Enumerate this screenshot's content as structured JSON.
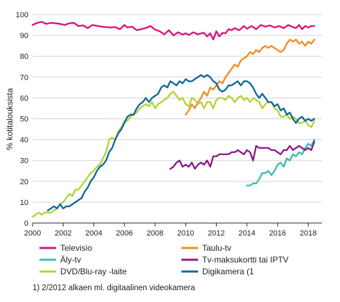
{
  "chart_data": {
    "type": "line",
    "title": "",
    "xlabel": "",
    "ylabel": "% kotitalouksista",
    "xlim": [
      2000,
      2018.9
    ],
    "ylim": [
      0,
      100
    ],
    "xticks": [
      "2000",
      "2002",
      "2004",
      "2006",
      "2008",
      "2010",
      "2012",
      "2014",
      "2016",
      "2018"
    ],
    "yticks": [
      "0",
      "10",
      "20",
      "30",
      "40",
      "50",
      "60",
      "70",
      "80",
      "90",
      "100"
    ],
    "grid": "horizontal",
    "legend_position": "bottom",
    "footnote": "1) 2/2012 alkaen ml. digitaalinen videokamera",
    "series": [
      {
        "name": "Televisio",
        "color": "#d9147a",
        "x": [
          2000,
          2000.3,
          2000.6,
          2000.9,
          2001.2,
          2001.5,
          2001.8,
          2002.1,
          2002.4,
          2002.7,
          2003.0,
          2003.3,
          2003.6,
          2003.9,
          2004.2,
          2004.5,
          2004.8,
          2005.1,
          2005.4,
          2005.7,
          2006.0,
          2006.2,
          2006.5,
          2006.8,
          2007.1,
          2007.4,
          2007.7,
          2008.0,
          2008.3,
          2008.6,
          2008.9,
          2009.2,
          2009.5,
          2009.8,
          2010.0,
          2010.2,
          2010.5,
          2010.8,
          2011.0,
          2011.2,
          2011.4,
          2011.6,
          2011.8,
          2012.0,
          2012.2,
          2012.4,
          2012.6,
          2012.8,
          2013.0,
          2013.2,
          2013.5,
          2013.8,
          2014.0,
          2014.3,
          2014.6,
          2014.9,
          2015.2,
          2015.5,
          2015.8,
          2016.1,
          2016.4,
          2016.7,
          2017.0,
          2017.2,
          2017.4,
          2017.6,
          2017.8,
          2018.0,
          2018.2,
          2018.4
        ],
        "values": [
          95,
          96,
          96.5,
          95.5,
          96,
          95.8,
          95.5,
          95,
          95.8,
          96,
          94.5,
          94.8,
          93.5,
          95,
          94.6,
          94.2,
          94,
          93.8,
          94,
          93,
          95,
          93.8,
          94.2,
          92.5,
          93,
          93.6,
          94.5,
          92.8,
          92,
          90.5,
          92.5,
          90,
          91.5,
          90.4,
          91,
          90.2,
          91.5,
          90.5,
          91,
          91.2,
          89.5,
          91,
          88,
          92,
          89.5,
          91.2,
          91,
          93,
          92.5,
          93.5,
          92.5,
          94.5,
          93.2,
          94.5,
          93,
          95,
          94.2,
          94.8,
          93.8,
          94.5,
          93.5,
          95,
          94,
          93.5,
          95,
          93,
          94.5,
          93.8,
          94.5,
          94.5
        ]
      },
      {
        "name": "Taulu-tv",
        "color": "#f28c22",
        "x": [
          2010.0,
          2010.2,
          2010.4,
          2010.6,
          2010.8,
          2011.0,
          2011.2,
          2011.4,
          2011.6,
          2011.8,
          2012.0,
          2012.2,
          2012.4,
          2012.6,
          2012.8,
          2013.0,
          2013.2,
          2013.4,
          2013.6,
          2013.8,
          2014.0,
          2014.2,
          2014.4,
          2014.6,
          2014.8,
          2015.0,
          2015.2,
          2015.4,
          2015.6,
          2015.8,
          2016.0,
          2016.2,
          2016.4,
          2016.6,
          2016.8,
          2017.0,
          2017.2,
          2017.4,
          2017.6,
          2017.8,
          2018.0,
          2018.2,
          2018.4
        ],
        "values": [
          52,
          54,
          57,
          55,
          58,
          60,
          63,
          61,
          65,
          64,
          66,
          68,
          67,
          70,
          72,
          74,
          76,
          75,
          78,
          79,
          80,
          82,
          81,
          83,
          82,
          84,
          85,
          84,
          85,
          84,
          83,
          82,
          83,
          86,
          88,
          87,
          88,
          86,
          87,
          85,
          87,
          86,
          88
        ]
      },
      {
        "name": "Äly-tv",
        "color": "#3cbcb0",
        "x": [
          2014.0,
          2014.2,
          2014.4,
          2014.6,
          2014.8,
          2015.0,
          2015.2,
          2015.4,
          2015.6,
          2015.8,
          2016.0,
          2016.2,
          2016.4,
          2016.6,
          2016.8,
          2017.0,
          2017.2,
          2017.4,
          2017.6,
          2017.8,
          2018.0,
          2018.2,
          2018.4
        ],
        "values": [
          18,
          18,
          19,
          19,
          21,
          24,
          24,
          25,
          23,
          25,
          28,
          29,
          27,
          31,
          30,
          33,
          32,
          34,
          33,
          36,
          38,
          37,
          40
        ]
      },
      {
        "name": "Tv-maksukortti tai IPTV",
        "color": "#8e1a8a",
        "x": [
          2009.0,
          2009.2,
          2009.4,
          2009.6,
          2009.8,
          2010.0,
          2010.2,
          2010.4,
          2010.6,
          2010.8,
          2011.0,
          2011.2,
          2011.4,
          2011.6,
          2011.8,
          2012.0,
          2012.2,
          2012.4,
          2012.6,
          2012.8,
          2013.0,
          2013.2,
          2013.4,
          2013.6,
          2013.8,
          2014.0,
          2014.2,
          2014.4,
          2014.6,
          2014.8,
          2015.0,
          2015.2,
          2015.4,
          2015.6,
          2015.8,
          2016.0,
          2016.2,
          2016.4,
          2016.6,
          2016.8,
          2017.0,
          2017.2,
          2017.4,
          2017.6,
          2017.8,
          2018.0,
          2018.2,
          2018.4
        ],
        "values": [
          26,
          27,
          29,
          30,
          27,
          28,
          27,
          29,
          26,
          28,
          29,
          28,
          30,
          27,
          32,
          32,
          33,
          33,
          33,
          33,
          34,
          34,
          35,
          34,
          33,
          35,
          34,
          30,
          37,
          36,
          36,
          36,
          36,
          35,
          35,
          34,
          33,
          35,
          35,
          37,
          35,
          36,
          37,
          36,
          35,
          36,
          35,
          39
        ]
      },
      {
        "name": "DVD/Blu-ray -laite",
        "color": "#b5d334",
        "x": [
          2000,
          2000.2,
          2000.4,
          2000.6,
          2000.8,
          2001.0,
          2001.2,
          2001.4,
          2001.6,
          2001.8,
          2002.0,
          2002.2,
          2002.4,
          2002.6,
          2002.8,
          2003.0,
          2003.2,
          2003.4,
          2003.6,
          2003.8,
          2004.0,
          2004.2,
          2004.4,
          2004.6,
          2004.8,
          2005.0,
          2005.2,
          2005.4,
          2005.6,
          2005.8,
          2006.0,
          2006.2,
          2006.4,
          2006.6,
          2006.8,
          2007.0,
          2007.2,
          2007.4,
          2007.6,
          2007.8,
          2008.0,
          2008.2,
          2008.4,
          2008.6,
          2008.8,
          2009.0,
          2009.2,
          2009.4,
          2009.6,
          2009.8,
          2010.0,
          2010.2,
          2010.4,
          2010.6,
          2010.8,
          2011.0,
          2011.2,
          2011.4,
          2011.6,
          2011.8,
          2012.0,
          2012.2,
          2012.4,
          2012.6,
          2012.8,
          2013.0,
          2013.2,
          2013.4,
          2013.6,
          2013.8,
          2014.0,
          2014.2,
          2014.4,
          2014.6,
          2014.8,
          2015.0,
          2015.2,
          2015.4,
          2015.6,
          2015.8,
          2016.0,
          2016.2,
          2016.4,
          2016.6,
          2016.8,
          2017.0,
          2017.2,
          2017.4,
          2017.6,
          2017.8,
          2018.0,
          2018.2,
          2018.4
        ],
        "values": [
          3,
          4,
          5,
          4,
          5,
          5,
          5,
          6,
          7,
          9,
          10,
          12,
          14,
          13,
          16,
          16,
          18,
          20,
          22,
          24,
          25,
          27,
          28,
          31,
          34,
          40,
          41,
          40,
          44,
          46,
          49,
          49,
          51,
          52,
          53,
          55,
          56,
          57,
          56,
          58,
          55,
          57,
          58,
          59,
          60,
          62,
          63,
          61,
          59,
          60,
          57,
          56,
          60,
          59,
          57,
          58,
          55,
          58,
          58,
          55,
          59,
          60,
          60,
          59,
          61,
          60,
          58,
          60,
          61,
          59,
          60,
          58,
          60,
          59,
          58,
          55,
          57,
          58,
          58,
          55,
          54,
          51,
          51,
          52,
          50,
          51,
          50,
          48,
          48,
          49,
          47,
          46,
          49
        ]
      },
      {
        "name": "Digikamera (1",
        "color": "#0e6a9c",
        "x": [
          2001.0,
          2001.2,
          2001.4,
          2001.6,
          2001.8,
          2002.0,
          2002.2,
          2002.4,
          2002.6,
          2002.8,
          2003.0,
          2003.2,
          2003.4,
          2003.6,
          2003.8,
          2004.0,
          2004.2,
          2004.4,
          2004.6,
          2004.8,
          2005.0,
          2005.2,
          2005.4,
          2005.6,
          2005.8,
          2006.0,
          2006.2,
          2006.4,
          2006.6,
          2006.8,
          2007.0,
          2007.2,
          2007.4,
          2007.6,
          2007.8,
          2008.0,
          2008.2,
          2008.4,
          2008.6,
          2008.8,
          2009.0,
          2009.2,
          2009.4,
          2009.6,
          2009.8,
          2010.0,
          2010.2,
          2010.4,
          2010.6,
          2010.8,
          2011.0,
          2011.2,
          2011.4,
          2011.6,
          2011.8,
          2012.0,
          2012.2,
          2012.4,
          2012.6,
          2012.8,
          2013.0,
          2013.2,
          2013.4,
          2013.6,
          2013.8,
          2014.0,
          2014.2,
          2014.4,
          2014.6,
          2014.8,
          2015.0,
          2015.2,
          2015.4,
          2015.6,
          2015.8,
          2016.0,
          2016.2,
          2016.4,
          2016.6,
          2016.8,
          2017.0,
          2017.2,
          2017.4,
          2017.6,
          2017.8,
          2018.0,
          2018.2,
          2018.4
        ],
        "values": [
          6,
          7,
          8,
          7,
          9,
          7,
          8,
          8,
          9,
          10,
          11,
          12,
          15,
          17,
          20,
          22,
          25,
          27,
          28,
          30,
          34,
          36,
          40,
          43,
          45,
          48,
          51,
          52,
          52,
          55,
          57,
          58,
          60,
          58,
          60,
          61,
          62,
          65,
          66,
          65,
          68,
          67,
          66,
          68,
          67,
          69,
          68,
          68,
          69,
          70,
          71,
          70,
          71,
          70,
          68,
          67,
          64,
          63,
          64,
          66,
          66,
          67,
          68,
          66,
          68,
          68,
          67,
          65,
          62,
          60,
          62,
          60,
          58,
          58,
          56,
          57,
          54,
          55,
          52,
          53,
          50,
          48,
          50,
          51,
          49,
          50,
          49,
          50
        ]
      }
    ]
  }
}
